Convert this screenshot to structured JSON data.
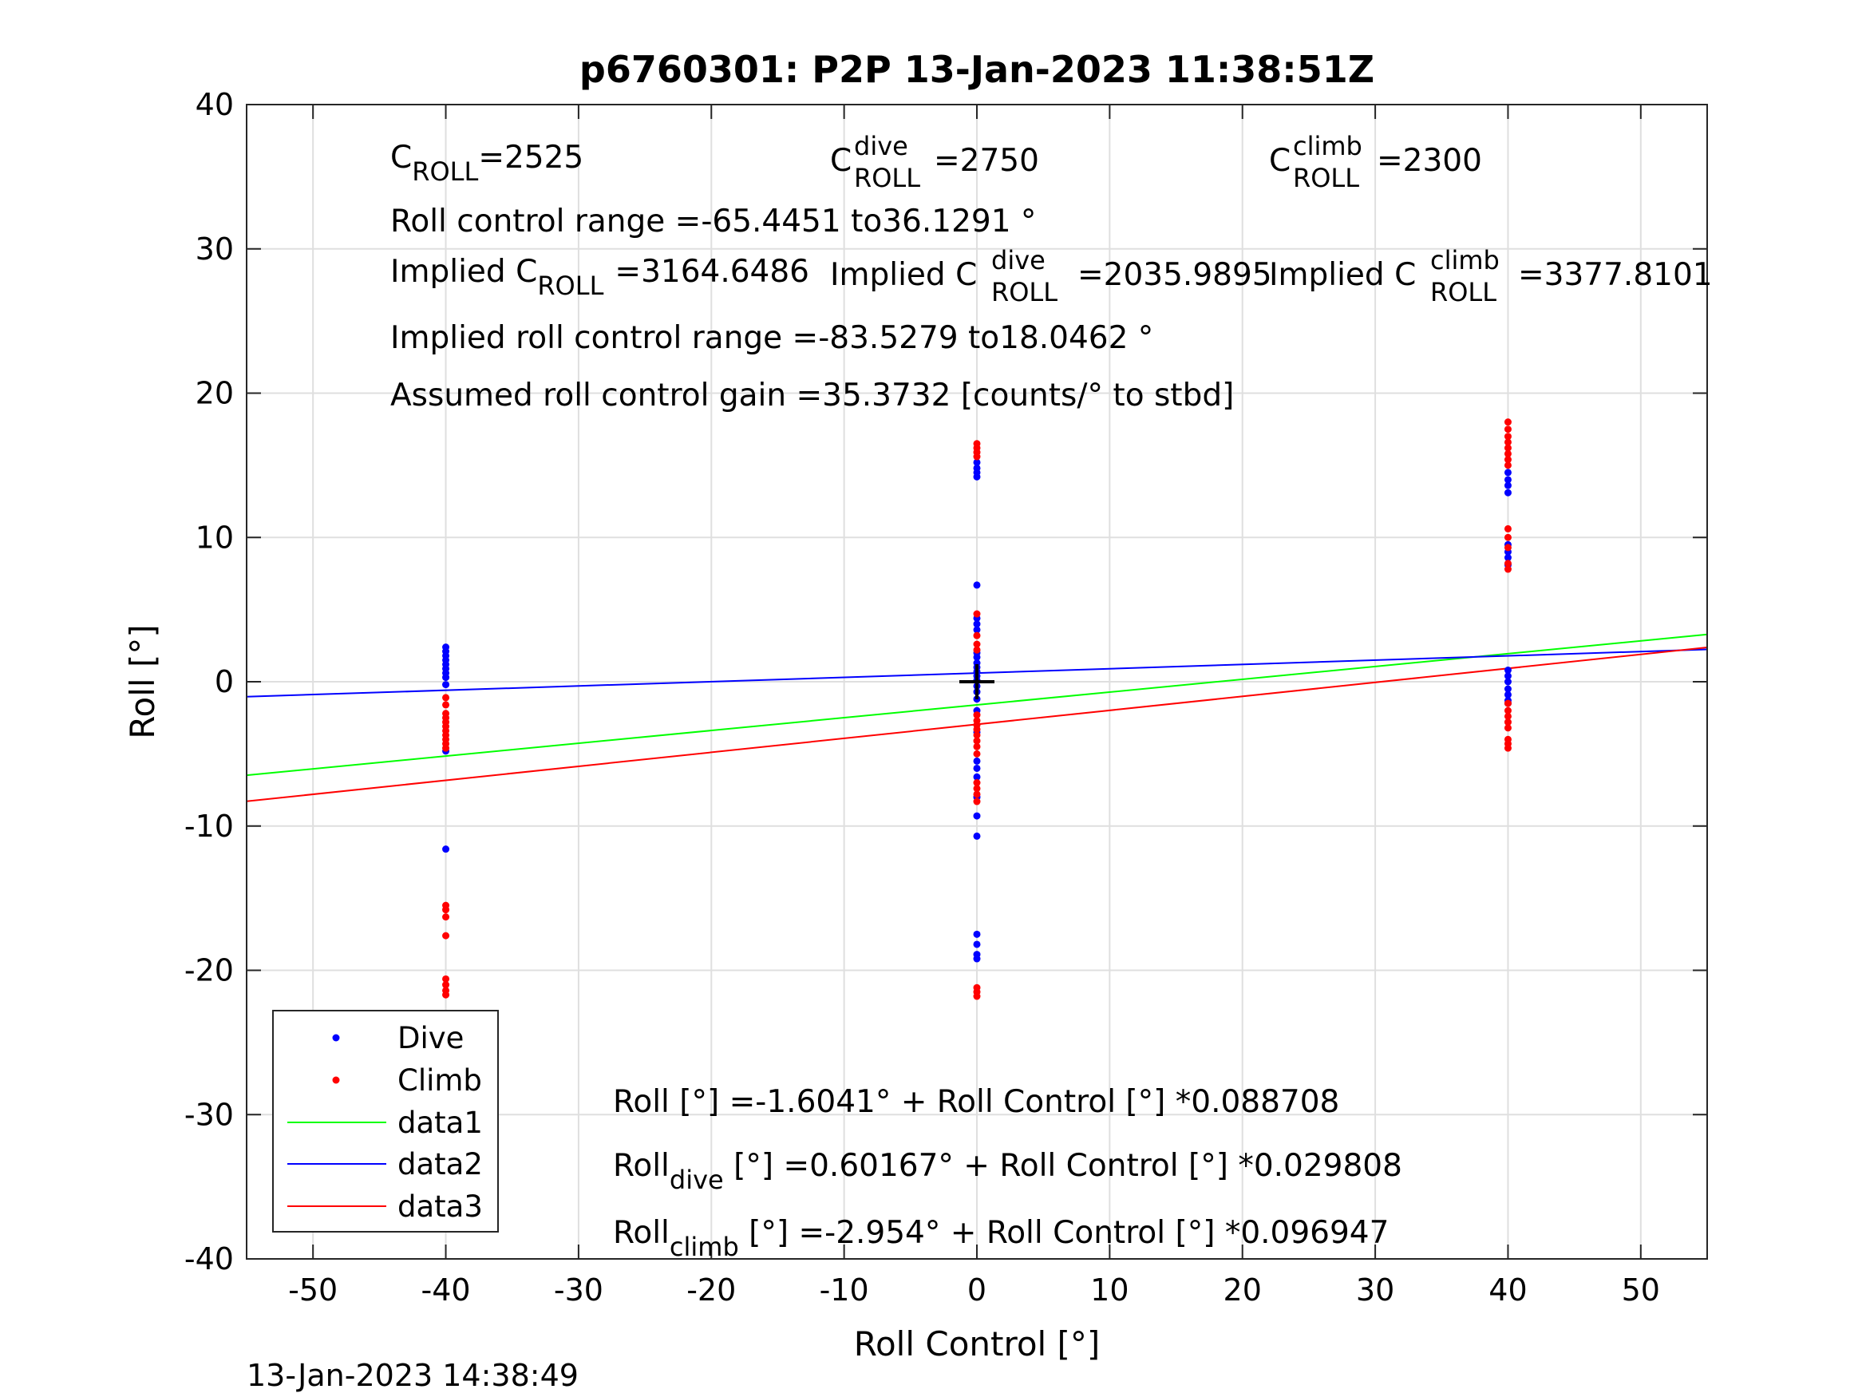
{
  "chart_data": {
    "type": "scatter",
    "title": "p6760301: P2P 13-Jan-2023 11:38:51Z",
    "xlabel": "Roll Control [°]",
    "ylabel": "Roll [°]",
    "xlim": [
      -55,
      55
    ],
    "ylim": [
      -40,
      40
    ],
    "xticks": [
      -50,
      -40,
      -30,
      -20,
      -10,
      0,
      10,
      20,
      30,
      40,
      50
    ],
    "yticks": [
      -40,
      -30,
      -20,
      -10,
      0,
      10,
      20,
      30,
      40
    ],
    "grid": true,
    "legend_position": "bottom-left",
    "footer_timestamp": "13-Jan-2023 14:38:49",
    "legend": [
      {
        "label": "Dive",
        "kind": "marker",
        "color": "#0000ff"
      },
      {
        "label": "Climb",
        "kind": "marker",
        "color": "#ff0000"
      },
      {
        "label": "data1",
        "kind": "line",
        "color": "#00ff00"
      },
      {
        "label": "data2",
        "kind": "line",
        "color": "#0000ff"
      },
      {
        "label": "data3",
        "kind": "line",
        "color": "#ff0000"
      }
    ],
    "series": [
      {
        "name": "Dive",
        "color": "#0000ff",
        "points": [
          [
            -40,
            2.4
          ],
          [
            -40,
            2.1
          ],
          [
            -40,
            1.8
          ],
          [
            -40,
            1.5
          ],
          [
            -40,
            1.2
          ],
          [
            -40,
            0.9
          ],
          [
            -40,
            0.6
          ],
          [
            -40,
            0.3
          ],
          [
            -40,
            -0.2
          ],
          [
            -40,
            -4.8
          ],
          [
            -40,
            -11.6
          ],
          [
            0,
            15.2
          ],
          [
            0,
            14.8
          ],
          [
            0,
            14.5
          ],
          [
            0,
            14.2
          ],
          [
            0,
            6.7
          ],
          [
            0,
            4.4
          ],
          [
            0,
            4.0
          ],
          [
            0,
            3.6
          ],
          [
            0,
            2.0
          ],
          [
            0,
            1.7
          ],
          [
            0,
            1.3
          ],
          [
            0,
            1.0
          ],
          [
            0,
            0.7
          ],
          [
            0,
            0.4
          ],
          [
            0,
            0.1
          ],
          [
            0,
            -0.3
          ],
          [
            0,
            -0.7
          ],
          [
            0,
            -1.2
          ],
          [
            0,
            -2.0
          ],
          [
            0,
            -3.5
          ],
          [
            0,
            -5.5
          ],
          [
            0,
            -6.0
          ],
          [
            0,
            -6.6
          ],
          [
            0,
            -8.0
          ],
          [
            0,
            -9.3
          ],
          [
            0,
            -10.7
          ],
          [
            0,
            -17.5
          ],
          [
            0,
            -18.2
          ],
          [
            0,
            -18.9
          ],
          [
            0,
            -19.2
          ],
          [
            40,
            14.5
          ],
          [
            40,
            14.0
          ],
          [
            40,
            13.6
          ],
          [
            40,
            13.1
          ],
          [
            40,
            9.5
          ],
          [
            40,
            9.0
          ],
          [
            40,
            8.6
          ],
          [
            40,
            8.1
          ],
          [
            40,
            0.8
          ],
          [
            40,
            0.4
          ],
          [
            40,
            0.0
          ],
          [
            40,
            -0.5
          ],
          [
            40,
            -0.9
          ],
          [
            40,
            -1.3
          ],
          [
            40,
            -1.5
          ]
        ]
      },
      {
        "name": "Climb",
        "color": "#ff0000",
        "points": [
          [
            -40,
            -1.1
          ],
          [
            -40,
            -1.6
          ],
          [
            -40,
            -2.2
          ],
          [
            -40,
            -2.5
          ],
          [
            -40,
            -2.8
          ],
          [
            -40,
            -3.1
          ],
          [
            -40,
            -3.4
          ],
          [
            -40,
            -3.7
          ],
          [
            -40,
            -4.0
          ],
          [
            -40,
            -4.3
          ],
          [
            -40,
            -4.6
          ],
          [
            -40,
            -15.5
          ],
          [
            -40,
            -15.8
          ],
          [
            -40,
            -16.3
          ],
          [
            -40,
            -17.6
          ],
          [
            -40,
            -20.6
          ],
          [
            -40,
            -21.0
          ],
          [
            -40,
            -21.4
          ],
          [
            -40,
            -21.7
          ],
          [
            0,
            16.5
          ],
          [
            0,
            16.2
          ],
          [
            0,
            15.9
          ],
          [
            0,
            15.6
          ],
          [
            0,
            4.7
          ],
          [
            0,
            3.2
          ],
          [
            0,
            2.6
          ],
          [
            0,
            2.2
          ],
          [
            0,
            -2.3
          ],
          [
            0,
            -2.7
          ],
          [
            0,
            -3.0
          ],
          [
            0,
            -3.3
          ],
          [
            0,
            -3.7
          ],
          [
            0,
            -4.1
          ],
          [
            0,
            -4.5
          ],
          [
            0,
            -5.0
          ],
          [
            0,
            -7.0
          ],
          [
            0,
            -7.4
          ],
          [
            0,
            -7.8
          ],
          [
            0,
            -8.3
          ],
          [
            0,
            -21.2
          ],
          [
            0,
            -21.5
          ],
          [
            0,
            -21.8
          ],
          [
            40,
            18.0
          ],
          [
            40,
            17.5
          ],
          [
            40,
            17.0
          ],
          [
            40,
            16.6
          ],
          [
            40,
            16.2
          ],
          [
            40,
            15.8
          ],
          [
            40,
            15.4
          ],
          [
            40,
            15.0
          ],
          [
            40,
            10.6
          ],
          [
            40,
            10.0
          ],
          [
            40,
            9.3
          ],
          [
            40,
            8.2
          ],
          [
            40,
            7.8
          ],
          [
            40,
            -1.5
          ],
          [
            40,
            -2.0
          ],
          [
            40,
            -2.4
          ],
          [
            40,
            -2.8
          ],
          [
            40,
            -3.2
          ],
          [
            40,
            -4.0
          ],
          [
            40,
            -4.3
          ],
          [
            40,
            -4.6
          ]
        ]
      }
    ],
    "fit_lines": [
      {
        "name": "data1",
        "color": "#00ff00",
        "intercept": -1.6041,
        "slope": 0.088708
      },
      {
        "name": "data2",
        "color": "#0000ff",
        "intercept": 0.60167,
        "slope": 0.029808
      },
      {
        "name": "data3",
        "color": "#ff0000",
        "intercept": -2.954,
        "slope": 0.096947
      }
    ],
    "crosshair": {
      "x": 0,
      "y": 0
    },
    "annotations": {
      "c_roll_label": "C",
      "c_roll_sub": "ROLL",
      "c_roll_value": "=2525",
      "c_dive_label": "C",
      "c_dive_sup": "dive",
      "c_dive_sub": "ROLL",
      "c_dive_value": "=2750",
      "c_climb_label": "C",
      "c_climb_sup": "climb",
      "c_climb_sub": "ROLL",
      "c_climb_value": "=2300",
      "roll_range": "Roll control range =-65.4451 to36.1291 °",
      "implied_c_prefix": "Implied C",
      "implied_c_sub": "ROLL",
      "implied_c_value": "=3164.6486",
      "implied_dive_prefix": "Implied C",
      "implied_dive_sup": "dive",
      "implied_dive_sub": "ROLL",
      "implied_dive_value": "=2035.9895",
      "implied_climb_prefix": "Implied C",
      "implied_climb_sup": "climb",
      "implied_climb_sub": "ROLL",
      "implied_climb_value": "=3377.8101",
      "implied_range": "Implied roll control range =-83.5279 to18.0462 °",
      "gain": "Assumed roll control gain =35.3732 [counts/° to stbd]",
      "eq_all": "Roll [°] =-1.6041° + Roll Control [°] *0.088708",
      "eq_dive_prefix": "Roll",
      "eq_dive_sub": "dive",
      "eq_dive_rest": " [°] =0.60167° + Roll Control [°] *0.029808",
      "eq_climb_prefix": "Roll",
      "eq_climb_sub": "climb",
      "eq_climb_rest": " [°] =-2.954° + Roll Control [°] *0.096947"
    }
  }
}
